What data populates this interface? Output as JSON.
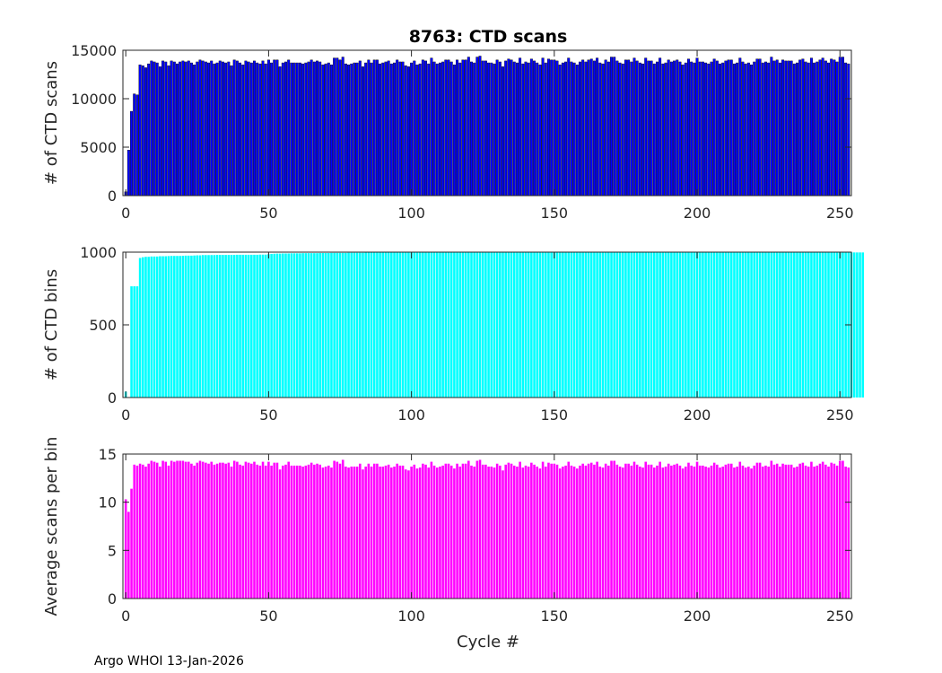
{
  "figure": {
    "title": "8763: CTD scans",
    "footer": "Argo WHOI 13-Jan-2026",
    "xlabel": "Cycle #"
  },
  "chart_data": [
    {
      "type": "bar",
      "name": "scans",
      "ylabel": "# of CTD scans",
      "color": "#0000ff",
      "edge_color": "#000000",
      "xlim": [
        -1,
        254
      ],
      "ylim": [
        0,
        15000
      ],
      "xticks": [
        0,
        50,
        100,
        150,
        200,
        250
      ],
      "yticks": [
        0,
        5000,
        10000,
        15000
      ],
      "grid": false,
      "x_start": 0,
      "values": [
        400,
        4700,
        8700,
        10500,
        10400,
        13500,
        13400,
        13200,
        13600,
        13900,
        13800,
        13700,
        13300,
        13900,
        13800,
        13400,
        13900,
        13800,
        13600,
        13800,
        13900,
        13800,
        13900,
        13700,
        13500,
        13800,
        14000,
        13900,
        13800,
        13700,
        13900,
        13600,
        13700,
        13900,
        13800,
        13700,
        13800,
        13400,
        14000,
        13900,
        13700,
        13500,
        13900,
        13800,
        13700,
        13900,
        13700,
        13600,
        13900,
        13600,
        14000,
        13700,
        14000,
        14000,
        13300,
        13700,
        13800,
        14000,
        13700,
        13700,
        13700,
        13700,
        13600,
        13700,
        13800,
        14000,
        13800,
        13900,
        13800,
        13500,
        13600,
        13700,
        13500,
        14200,
        14200,
        14000,
        14300,
        13600,
        13500,
        13600,
        13700,
        13700,
        13900,
        13300,
        13700,
        14000,
        13700,
        14000,
        14000,
        13600,
        13700,
        13800,
        13900,
        13600,
        13700,
        14000,
        13800,
        13800,
        13400,
        13300,
        13700,
        13900,
        13500,
        13600,
        14000,
        13900,
        13600,
        14200,
        13800,
        13600,
        13700,
        13800,
        14000,
        14000,
        13800,
        13500,
        14000,
        13700,
        14000,
        14000,
        14300,
        13800,
        13700,
        14300,
        14400,
        13900,
        13900,
        13700,
        13700,
        13600,
        14000,
        13800,
        13300,
        13900,
        14100,
        14000,
        13800,
        13700,
        14200,
        13600,
        13800,
        13700,
        14100,
        13900,
        13700,
        13500,
        14200,
        13700,
        14100,
        14000,
        14000,
        13900,
        13500,
        13700,
        13800,
        14200,
        13800,
        13700,
        13500,
        13800,
        14000,
        13800,
        14000,
        14100,
        13900,
        14200,
        13700,
        13600,
        14000,
        13800,
        14300,
        14300,
        13900,
        13700,
        13600,
        14000,
        14000,
        13800,
        14200,
        13900,
        13700,
        13600,
        14200,
        13900,
        13900,
        13600,
        13800,
        14200,
        13600,
        13700,
        14000,
        13800,
        13900,
        14000,
        13800,
        13500,
        13700,
        14100,
        13800,
        13700,
        14200,
        13800,
        13800,
        13700,
        13600,
        13800,
        14100,
        13900,
        13600,
        13700,
        13900,
        14000,
        14000,
        13600,
        13700,
        14200,
        13800,
        13600,
        13700,
        13500,
        13800,
        14100,
        14100,
        13700,
        13800,
        13700,
        14300,
        13900,
        14000,
        13700,
        14000,
        13900,
        13900,
        13900,
        13600,
        13700,
        14000,
        14100,
        13800,
        13700,
        14200,
        13700,
        13800,
        14000,
        14200,
        13900,
        13700,
        14100,
        14000,
        13800,
        14300,
        14300,
        13700,
        13600
      ]
    },
    {
      "type": "bar",
      "name": "bins",
      "ylabel": "# of CTD bins",
      "color": "#00ffff",
      "edge_color": "#00ffff",
      "xlim": [
        -1,
        254
      ],
      "ylim": [
        0,
        1000
      ],
      "xticks": [
        0,
        50,
        100,
        150,
        200,
        250
      ],
      "yticks": [
        0,
        500,
        1000
      ],
      "grid": false,
      "x_start": 0,
      "values": [
        40,
        0,
        765,
        765,
        765,
        960,
        965,
        968,
        968,
        970,
        970,
        970,
        972,
        972,
        972,
        973,
        974,
        974,
        974,
        974,
        975,
        976,
        976,
        976,
        977,
        978,
        978,
        980,
        980,
        980,
        980,
        980,
        981,
        981,
        981,
        981,
        981,
        981,
        981,
        982,
        982,
        982,
        982,
        982,
        982,
        982,
        982,
        983,
        983,
        983,
        986,
        988,
        989,
        990,
        990,
        991,
        991,
        991,
        992,
        992,
        992,
        992,
        993,
        993,
        993,
        993,
        993,
        993,
        994,
        994,
        994,
        994,
        995,
        995,
        995,
        995,
        995,
        995,
        996,
        996,
        996,
        996,
        996,
        996,
        997,
        997,
        997,
        997,
        997,
        997,
        997,
        997,
        998,
        998,
        998,
        998,
        998,
        998,
        998,
        998,
        998,
        998,
        998,
        998,
        998,
        998,
        998,
        998,
        998,
        998,
        998,
        998,
        998,
        998,
        998,
        998,
        998,
        998,
        998,
        998,
        998,
        998,
        998,
        998,
        998,
        998,
        998,
        998,
        998,
        998,
        998,
        998,
        998,
        998,
        998,
        998,
        998,
        998,
        998,
        998,
        998,
        998,
        998,
        998,
        998,
        998,
        998,
        998,
        998,
        998,
        998,
        998,
        998,
        998,
        998,
        998,
        998,
        998,
        998,
        998,
        998,
        998,
        998,
        998,
        998,
        998,
        998,
        998,
        998,
        998,
        998,
        998,
        998,
        998,
        998,
        998,
        998,
        998,
        998,
        998,
        998,
        998,
        998,
        998,
        998,
        998,
        998,
        998,
        998,
        998,
        998,
        998,
        998,
        998,
        998,
        998,
        998,
        998,
        998,
        998,
        998,
        998,
        998,
        998,
        998,
        998,
        998,
        998,
        998,
        998,
        998,
        998,
        998,
        998,
        998,
        998,
        998,
        998,
        998,
        998,
        998,
        998,
        998,
        998,
        998,
        998,
        998,
        998,
        998,
        998,
        998,
        998,
        998,
        998,
        998,
        998,
        998,
        998,
        998,
        998,
        998,
        998,
        998,
        998,
        998,
        998,
        998,
        998,
        998,
        998,
        998,
        998,
        998,
        998,
        998,
        998,
        998,
        998,
        998
      ]
    },
    {
      "type": "bar",
      "name": "scans_per_bin",
      "ylabel": "Average scans per bin",
      "color": "#ff00ff",
      "edge_color": "#ff00ff",
      "xlim": [
        -1,
        254
      ],
      "ylim": [
        0,
        15
      ],
      "xticks": [
        0,
        50,
        100,
        150,
        200,
        250
      ],
      "yticks": [
        0,
        5,
        10,
        15
      ],
      "grid": false,
      "x_start": 0,
      "values": [
        10.3,
        9.0,
        11.4,
        13.9,
        13.8,
        14.0,
        13.9,
        13.7,
        14.0,
        14.3,
        14.2,
        14.1,
        13.7,
        14.3,
        14.2,
        13.8,
        14.3,
        14.2,
        14.3,
        14.3,
        14.3,
        14.2,
        14.2,
        14.0,
        13.8,
        14.1,
        14.3,
        14.2,
        14.1,
        14.0,
        14.2,
        13.9,
        14.0,
        14.1,
        14.1,
        14.0,
        14.1,
        13.7,
        14.3,
        14.2,
        13.9,
        13.8,
        14.2,
        14.1,
        14.0,
        14.2,
        13.9,
        13.8,
        14.2,
        13.8,
        14.2,
        13.8,
        14.1,
        14.1,
        13.4,
        13.8,
        13.9,
        14.2,
        13.8,
        13.8,
        13.8,
        13.8,
        13.7,
        13.8,
        13.9,
        14.1,
        13.9,
        14.0,
        13.9,
        13.6,
        13.7,
        13.8,
        13.6,
        14.3,
        14.2,
        14.0,
        14.4,
        13.7,
        13.6,
        13.7,
        13.7,
        13.7,
        14.0,
        13.4,
        13.7,
        14.0,
        13.7,
        14.0,
        14.0,
        13.7,
        13.7,
        13.8,
        13.9,
        13.6,
        13.7,
        14.0,
        13.8,
        13.8,
        13.4,
        13.3,
        13.7,
        13.9,
        13.5,
        13.6,
        14.0,
        13.9,
        13.6,
        14.2,
        13.8,
        13.6,
        13.7,
        13.8,
        14.0,
        14.0,
        13.8,
        13.5,
        14.0,
        13.7,
        14.0,
        14.0,
        14.3,
        13.8,
        13.7,
        14.3,
        14.4,
        13.9,
        13.9,
        13.7,
        13.7,
        13.6,
        14.0,
        13.8,
        13.3,
        13.9,
        14.1,
        14.0,
        13.8,
        13.7,
        14.2,
        13.6,
        13.8,
        13.7,
        14.1,
        13.9,
        13.7,
        13.5,
        14.2,
        13.7,
        14.1,
        14.0,
        14.0,
        13.9,
        13.5,
        13.7,
        13.8,
        14.2,
        13.8,
        13.7,
        13.5,
        13.8,
        14.0,
        13.8,
        14.0,
        14.1,
        13.9,
        14.2,
        13.7,
        13.6,
        14.0,
        13.8,
        14.3,
        14.3,
        13.9,
        13.7,
        13.6,
        14.0,
        14.0,
        13.8,
        14.2,
        13.9,
        13.7,
        13.6,
        14.2,
        13.9,
        13.9,
        13.6,
        13.8,
        14.2,
        13.6,
        13.7,
        14.0,
        13.8,
        13.9,
        14.0,
        13.8,
        13.5,
        13.7,
        14.1,
        13.8,
        13.7,
        14.2,
        13.8,
        13.8,
        13.7,
        13.6,
        13.8,
        14.1,
        13.9,
        13.6,
        13.7,
        13.9,
        14.0,
        14.0,
        13.6,
        13.7,
        14.2,
        13.8,
        13.6,
        13.7,
        13.5,
        13.8,
        14.1,
        14.1,
        13.7,
        13.8,
        13.7,
        14.3,
        13.9,
        14.0,
        13.7,
        14.0,
        13.9,
        13.9,
        13.9,
        13.6,
        13.7,
        14.0,
        14.1,
        13.8,
        13.7,
        14.2,
        13.7,
        13.8,
        14.0,
        14.2,
        13.9,
        13.7,
        14.1,
        14.0,
        13.8,
        14.3,
        14.3,
        13.7,
        13.6
      ]
    }
  ]
}
